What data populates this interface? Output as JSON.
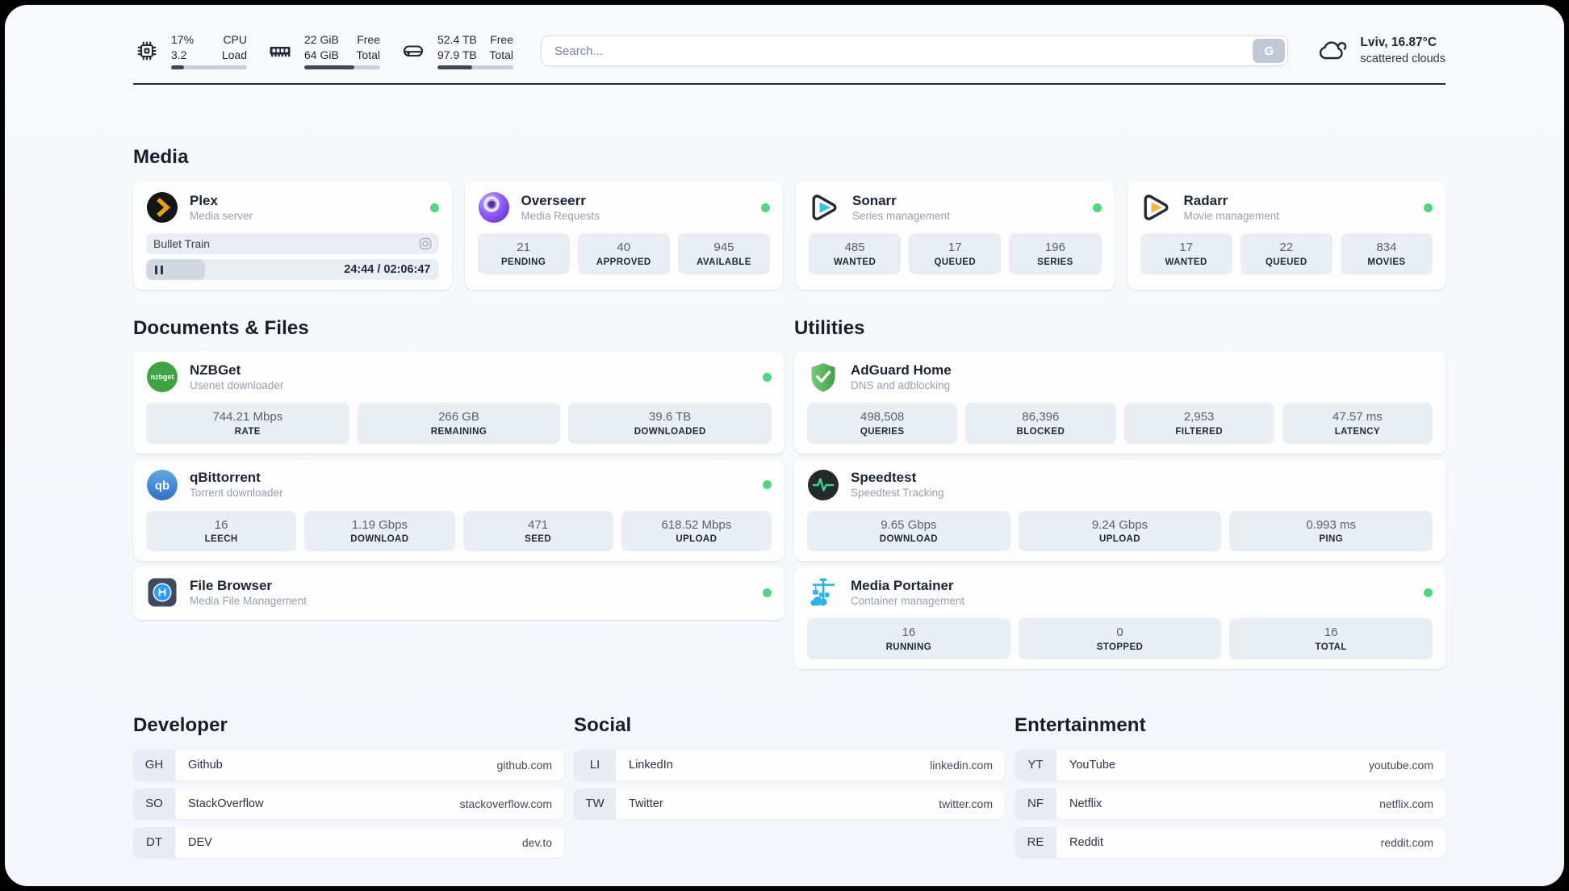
{
  "topbar": {
    "stats": [
      {
        "icon": "cpu-icon",
        "values": [
          "17%",
          "3.2"
        ],
        "labels": [
          "CPU",
          "Load"
        ],
        "percent": 17
      },
      {
        "icon": "memory-icon",
        "values": [
          "22 GiB",
          "64 GiB"
        ],
        "labels": [
          "Free",
          "Total"
        ],
        "percent": 66
      },
      {
        "icon": "disk-icon",
        "values": [
          "52.4 TB",
          "97.9 TB"
        ],
        "labels": [
          "Free",
          "Total"
        ],
        "percent": 46
      }
    ],
    "search": {
      "placeholder": "Search...",
      "button_label": "G"
    },
    "weather": {
      "location": "Lviv, 16.87°C",
      "condition": "scattered clouds"
    }
  },
  "sections": {
    "media": {
      "heading": "Media",
      "cards": [
        {
          "name": "Plex",
          "subtitle": "Media server",
          "now_playing": {
            "title": "Bullet Train",
            "time": "24:44 / 02:06:47",
            "progress_percent": 20
          }
        },
        {
          "name": "Overseerr",
          "subtitle": "Media Requests",
          "stats": [
            {
              "value": "21",
              "label": "PENDING"
            },
            {
              "value": "40",
              "label": "APPROVED"
            },
            {
              "value": "945",
              "label": "AVAILABLE"
            }
          ]
        },
        {
          "name": "Sonarr",
          "subtitle": "Series management",
          "stats": [
            {
              "value": "485",
              "label": "WANTED"
            },
            {
              "value": "17",
              "label": "QUEUED"
            },
            {
              "value": "196",
              "label": "SERIES"
            }
          ]
        },
        {
          "name": "Radarr",
          "subtitle": "Movie management",
          "stats": [
            {
              "value": "17",
              "label": "WANTED"
            },
            {
              "value": "22",
              "label": "QUEUED"
            },
            {
              "value": "834",
              "label": "MOVIES"
            }
          ]
        }
      ]
    },
    "documents": {
      "heading": "Documents & Files",
      "cards": [
        {
          "name": "NZBGet",
          "subtitle": "Usenet downloader",
          "stats": [
            {
              "value": "744.21 Mbps",
              "label": "RATE"
            },
            {
              "value": "266 GB",
              "label": "REMAINING"
            },
            {
              "value": "39.6 TB",
              "label": "DOWNLOADED"
            }
          ]
        },
        {
          "name": "qBittorrent",
          "subtitle": "Torrent downloader",
          "stats": [
            {
              "value": "16",
              "label": "LEECH"
            },
            {
              "value": "1.19 Gbps",
              "label": "DOWNLOAD"
            },
            {
              "value": "471",
              "label": "SEED"
            },
            {
              "value": "618.52 Mbps",
              "label": "UPLOAD"
            }
          ]
        },
        {
          "name": "File Browser",
          "subtitle": "Media File Management",
          "stats": []
        }
      ]
    },
    "utilities": {
      "heading": "Utilities",
      "cards": [
        {
          "name": "AdGuard Home",
          "subtitle": "DNS and adblocking",
          "stats": [
            {
              "value": "498,508",
              "label": "QUERIES"
            },
            {
              "value": "86,396",
              "label": "BLOCKED"
            },
            {
              "value": "2,953",
              "label": "FILTERED"
            },
            {
              "value": "47.57 ms",
              "label": "LATENCY"
            }
          ]
        },
        {
          "name": "Speedtest",
          "subtitle": "Speedtest Tracking",
          "stats": [
            {
              "value": "9.65 Gbps",
              "label": "DOWNLOAD"
            },
            {
              "value": "9.24 Gbps",
              "label": "UPLOAD"
            },
            {
              "value": "0.993 ms",
              "label": "PING"
            }
          ]
        },
        {
          "name": "Media Portainer",
          "subtitle": "Container management",
          "stats": [
            {
              "value": "16",
              "label": "RUNNING"
            },
            {
              "value": "0",
              "label": "STOPPED"
            },
            {
              "value": "16",
              "label": "TOTAL"
            }
          ]
        }
      ]
    },
    "bookmarks": [
      {
        "heading": "Developer",
        "items": [
          {
            "abbr": "GH",
            "name": "Github",
            "url": "github.com"
          },
          {
            "abbr": "SO",
            "name": "StackOverflow",
            "url": "stackoverflow.com"
          },
          {
            "abbr": "DT",
            "name": "DEV",
            "url": "dev.to"
          }
        ]
      },
      {
        "heading": "Social",
        "items": [
          {
            "abbr": "LI",
            "name": "LinkedIn",
            "url": "linkedin.com"
          },
          {
            "abbr": "TW",
            "name": "Twitter",
            "url": "twitter.com"
          }
        ]
      },
      {
        "heading": "Entertainment",
        "items": [
          {
            "abbr": "YT",
            "name": "YouTube",
            "url": "youtube.com"
          },
          {
            "abbr": "NF",
            "name": "Netflix",
            "url": "netflix.com"
          },
          {
            "abbr": "RE",
            "name": "Reddit",
            "url": "reddit.com"
          }
        ]
      }
    ]
  },
  "colors": {
    "status_online": "#4fd683",
    "accent_dark": "#1e2836",
    "tile_bg": "#e9edf4"
  }
}
